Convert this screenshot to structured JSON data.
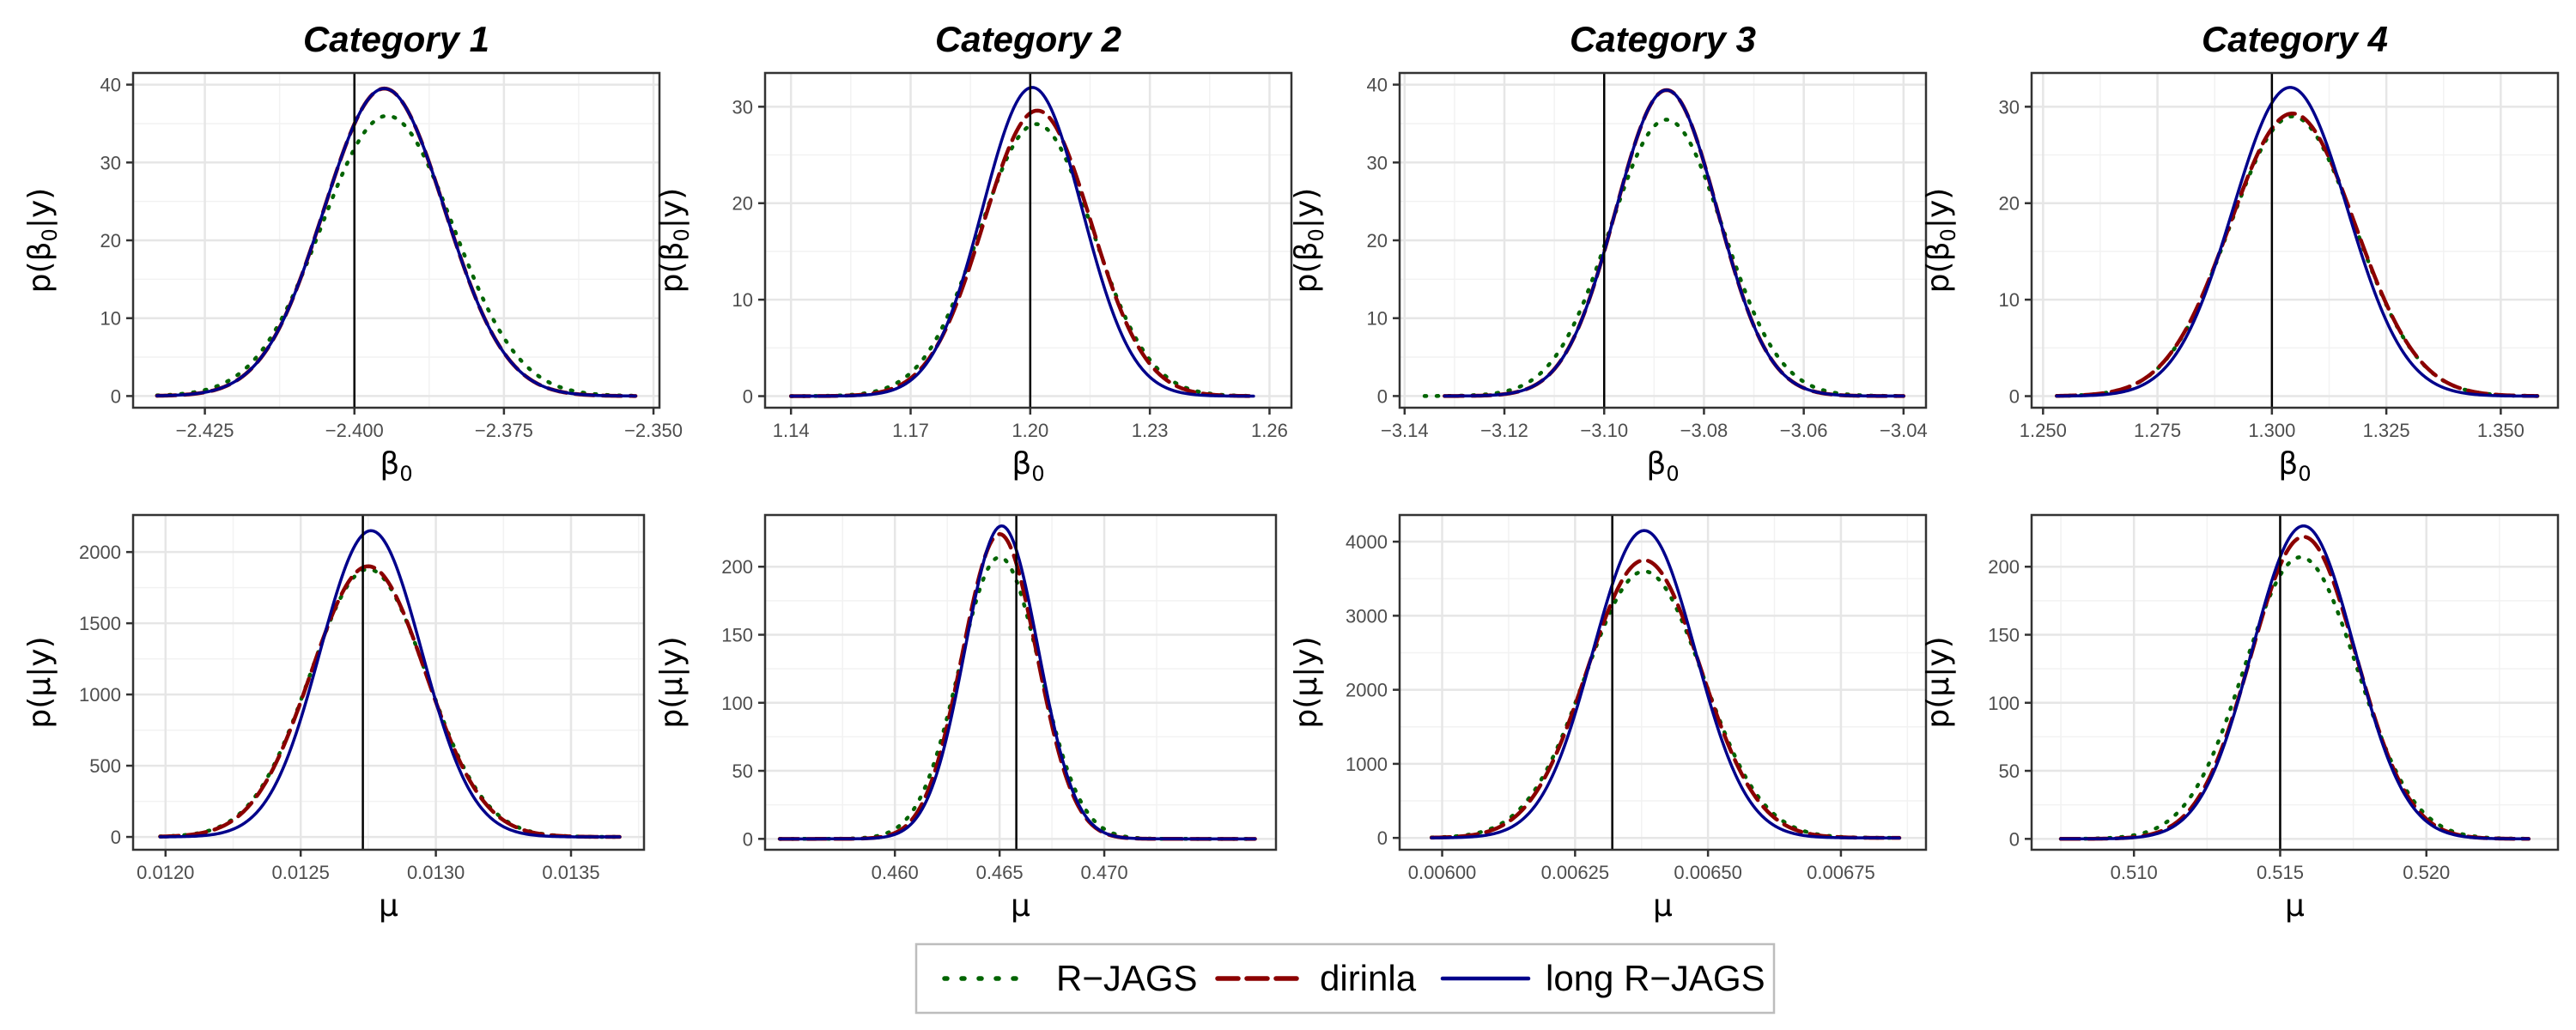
{
  "colors": {
    "R-JAGS": "#006400",
    "dirinla": "#8b0000",
    "long R-JAGS": "#00008b",
    "grid_major": "#e6e6e6",
    "grid_minor": "#f2f2f2",
    "vline": "#000000"
  },
  "legend": {
    "placement": "bottom",
    "entries": [
      {
        "name": "R−JAGS",
        "series_key": "R-JAGS",
        "dash": "dotted"
      },
      {
        "name": "dirinla",
        "series_key": "dirinla",
        "dash": "dashed"
      },
      {
        "name": "long R−JAGS",
        "series_key": "long R-JAGS",
        "dash": "solid"
      }
    ]
  },
  "chart_data": [
    {
      "type": "line",
      "title": "Category 1",
      "xlabel": "β",
      "xlabel_sub": "0",
      "ylabel": "p(β",
      "ylabel_sub": "0",
      "ylabel_tail": "|y)",
      "xlim": [
        -2.437,
        -2.349
      ],
      "ylim": [
        -1.5,
        41.5
      ],
      "xticks": [
        -2.425,
        -2.4,
        -2.375,
        -2.35
      ],
      "xticklabels": [
        "−2.425",
        "−2.400",
        "−2.375",
        "−2.350"
      ],
      "yticks": [
        0,
        10,
        20,
        30,
        40
      ],
      "yticklabels": [
        "0",
        "10",
        "20",
        "30",
        "40"
      ],
      "true_value": -2.4,
      "series": [
        {
          "key": "R-JAGS",
          "mean": -2.3945,
          "sd": 0.011,
          "peak": 36.0,
          "x_range": [
            -2.433,
            -2.353
          ]
        },
        {
          "key": "dirinla",
          "mean": -2.395,
          "sd": 0.0101,
          "peak": 39.5,
          "x_range": [
            -2.433,
            -2.353
          ]
        },
        {
          "key": "long R-JAGS",
          "mean": -2.395,
          "sd": 0.0101,
          "peak": 39.5,
          "x_range": [
            -2.433,
            -2.353
          ]
        }
      ]
    },
    {
      "type": "line",
      "title": "Category 2",
      "xlabel": "β",
      "xlabel_sub": "0",
      "ylabel": "p(β",
      "ylabel_sub": "0",
      "ylabel_tail": "|y)",
      "xlim": [
        1.1335,
        1.2655
      ],
      "ylim": [
        -1.2,
        33.5
      ],
      "xticks": [
        1.14,
        1.17,
        1.2,
        1.23,
        1.26
      ],
      "xticklabels": [
        "1.14",
        "1.17",
        "1.20",
        "1.23",
        "1.26"
      ],
      "yticks": [
        0,
        10,
        20,
        30
      ],
      "yticklabels": [
        "0",
        "10",
        "20",
        "30"
      ],
      "true_value": 1.2,
      "series": [
        {
          "key": "R-JAGS",
          "mean": 1.2015,
          "sd": 0.0142,
          "peak": 28.2,
          "x_range": [
            1.14,
            1.256
          ]
        },
        {
          "key": "dirinla",
          "mean": 1.2018,
          "sd": 0.0135,
          "peak": 29.6,
          "x_range": [
            1.14,
            1.256
          ]
        },
        {
          "key": "long R-JAGS",
          "mean": 1.2005,
          "sd": 0.0125,
          "peak": 32.0,
          "x_range": [
            1.14,
            1.256
          ]
        }
      ]
    },
    {
      "type": "line",
      "title": "Category 3",
      "xlabel": "β",
      "xlabel_sub": "0",
      "ylabel": "p(β",
      "ylabel_sub": "0",
      "ylabel_tail": "|y)",
      "xlim": [
        -3.141,
        -3.0355
      ],
      "ylim": [
        -1.5,
        41.5
      ],
      "xticks": [
        -3.14,
        -3.12,
        -3.1,
        -3.08,
        -3.06,
        -3.04
      ],
      "xticklabels": [
        "−3.14",
        "−3.12",
        "−3.10",
        "−3.08",
        "−3.06",
        "−3.04"
      ],
      "yticks": [
        0,
        10,
        20,
        30,
        40
      ],
      "yticklabels": [
        "0",
        "10",
        "20",
        "30",
        "40"
      ],
      "true_value": -3.1,
      "series": [
        {
          "key": "R-JAGS",
          "mean": -3.0875,
          "sd": 0.0113,
          "peak": 35.5,
          "x_range": [
            -3.136,
            -3.04
          ]
        },
        {
          "key": "dirinla",
          "mean": -3.0875,
          "sd": 0.0102,
          "peak": 39.3,
          "x_range": [
            -3.132,
            -3.04
          ]
        },
        {
          "key": "long R-JAGS",
          "mean": -3.0875,
          "sd": 0.0102,
          "peak": 39.3,
          "x_range": [
            -3.132,
            -3.04
          ]
        }
      ]
    },
    {
      "type": "line",
      "title": "Category 4",
      "xlabel": "β",
      "xlabel_sub": "0",
      "ylabel": "p(β",
      "ylabel_sub": "0",
      "ylabel_tail": "|y)",
      "xlim": [
        1.2475,
        1.3625
      ],
      "ylim": [
        -1.2,
        33.5
      ],
      "xticks": [
        1.25,
        1.275,
        1.3,
        1.325,
        1.35
      ],
      "xticklabels": [
        "1.250",
        "1.275",
        "1.300",
        "1.325",
        "1.350"
      ],
      "yticks": [
        0,
        10,
        20,
        30
      ],
      "yticklabels": [
        "0",
        "10",
        "20",
        "30"
      ],
      "true_value": 1.3,
      "series": [
        {
          "key": "R-JAGS",
          "mean": 1.3045,
          "sd": 0.0137,
          "peak": 29.0,
          "x_range": [
            1.253,
            1.358
          ]
        },
        {
          "key": "dirinla",
          "mean": 1.3045,
          "sd": 0.0137,
          "peak": 29.3,
          "x_range": [
            1.253,
            1.358
          ]
        },
        {
          "key": "long R-JAGS",
          "mean": 1.304,
          "sd": 0.0125,
          "peak": 32.0,
          "x_range": [
            1.253,
            1.358
          ]
        }
      ]
    },
    {
      "type": "line",
      "title": "",
      "xlabel": "μ",
      "xlabel_sub": "",
      "ylabel": "p(μ|y)",
      "ylabel_sub": "",
      "ylabel_tail": "",
      "xlim": [
        0.01188,
        0.01377
      ],
      "ylim": [
        -90,
        2260
      ],
      "xticks": [
        0.012,
        0.0125,
        0.013,
        0.0135
      ],
      "xticklabels": [
        "0.0120",
        "0.0125",
        "0.0130",
        "0.0135"
      ],
      "yticks": [
        0,
        500,
        1000,
        1500,
        2000
      ],
      "yticklabels": [
        "0",
        "500",
        "1000",
        "1500",
        "2000"
      ],
      "true_value": 0.01273,
      "series": [
        {
          "key": "R-JAGS",
          "mean": 0.01275,
          "sd": 0.000215,
          "peak": 1880,
          "x_range": [
            0.01198,
            0.01368
          ]
        },
        {
          "key": "dirinla",
          "mean": 0.01275,
          "sd": 0.000212,
          "peak": 1900,
          "x_range": [
            0.01198,
            0.01368
          ]
        },
        {
          "key": "long R-JAGS",
          "mean": 0.01276,
          "sd": 0.000188,
          "peak": 2150,
          "x_range": [
            0.01198,
            0.01368
          ]
        }
      ]
    },
    {
      "type": "line",
      "title": "",
      "xlabel": "μ",
      "xlabel_sub": "",
      "ylabel": "p(μ|y)",
      "ylabel_sub": "",
      "ylabel_tail": "",
      "xlim": [
        0.4538,
        0.4782
      ],
      "ylim": [
        -8,
        238
      ],
      "xticks": [
        0.46,
        0.465,
        0.47
      ],
      "xticklabels": [
        "0.460",
        "0.465",
        "0.470"
      ],
      "yticks": [
        0,
        50,
        100,
        150,
        200
      ],
      "yticklabels": [
        "0",
        "50",
        "100",
        "150",
        "200"
      ],
      "true_value": 0.4658,
      "series": [
        {
          "key": "R-JAGS",
          "mean": 0.465,
          "sd": 0.00193,
          "peak": 207,
          "x_range": [
            0.4545,
            0.4772
          ]
        },
        {
          "key": "dirinla",
          "mean": 0.465,
          "sd": 0.00178,
          "peak": 224,
          "x_range": [
            0.4545,
            0.4772
          ]
        },
        {
          "key": "long R-JAGS",
          "mean": 0.4651,
          "sd": 0.00175,
          "peak": 230,
          "x_range": [
            0.4545,
            0.4772
          ]
        }
      ]
    },
    {
      "type": "line",
      "title": "",
      "xlabel": "μ",
      "xlabel_sub": "",
      "ylabel": "p(μ|y)",
      "ylabel_sub": "",
      "ylabel_tail": "",
      "xlim": [
        0.00592,
        0.00691
      ],
      "ylim": [
        -160,
        4360
      ],
      "xticks": [
        0.006,
        0.00625,
        0.0065,
        0.00675
      ],
      "xticklabels": [
        "0.00600",
        "0.00625",
        "0.00650",
        "0.00675"
      ],
      "yticks": [
        0,
        1000,
        2000,
        3000,
        4000
      ],
      "yticklabels": [
        "0",
        "1000",
        "2000",
        "3000",
        "4000"
      ],
      "true_value": 0.00632,
      "series": [
        {
          "key": "R-JAGS",
          "mean": 0.00638,
          "sd": 0.000111,
          "peak": 3600,
          "x_range": [
            0.00598,
            0.00686
          ]
        },
        {
          "key": "dirinla",
          "mean": 0.00638,
          "sd": 0.000107,
          "peak": 3750,
          "x_range": [
            0.00598,
            0.00686
          ]
        },
        {
          "key": "long R-JAGS",
          "mean": 0.00638,
          "sd": 9.65e-05,
          "peak": 4150,
          "x_range": [
            0.00598,
            0.00686
          ]
        }
      ]
    },
    {
      "type": "line",
      "title": "",
      "xlabel": "μ",
      "xlabel_sub": "",
      "ylabel": "p(μ|y)",
      "ylabel_sub": "",
      "ylabel_tail": "",
      "xlim": [
        0.5065,
        0.5245
      ],
      "ylim": [
        -8,
        238
      ],
      "xticks": [
        0.51,
        0.515,
        0.52
      ],
      "xticklabels": [
        "0.510",
        "0.515",
        "0.520"
      ],
      "yticks": [
        0,
        50,
        100,
        150,
        200
      ],
      "yticklabels": [
        "0",
        "50",
        "100",
        "150",
        "200"
      ],
      "true_value": 0.515,
      "series": [
        {
          "key": "R-JAGS",
          "mean": 0.5157,
          "sd": 0.00193,
          "peak": 207,
          "x_range": [
            0.5075,
            0.5235
          ]
        },
        {
          "key": "dirinla",
          "mean": 0.5158,
          "sd": 0.0018,
          "peak": 222,
          "x_range": [
            0.5075,
            0.5235
          ]
        },
        {
          "key": "long R-JAGS",
          "mean": 0.5158,
          "sd": 0.00175,
          "peak": 230,
          "x_range": [
            0.5075,
            0.5235
          ]
        }
      ]
    }
  ]
}
